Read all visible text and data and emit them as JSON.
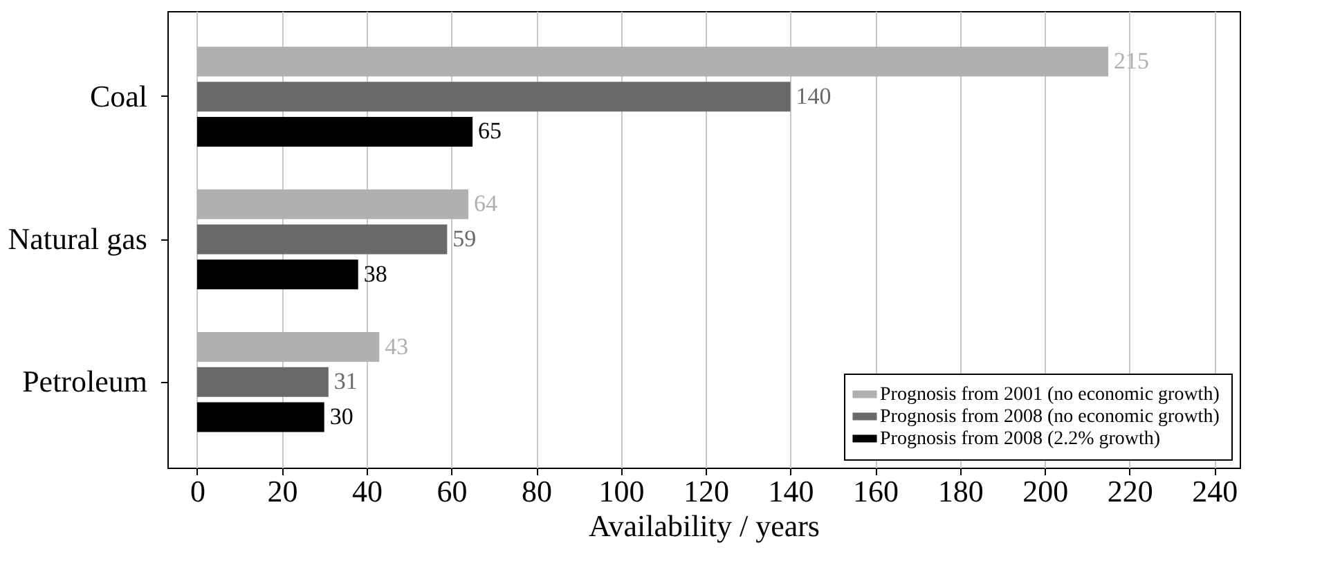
{
  "chart_data": {
    "type": "bar",
    "orientation": "horizontal",
    "xlabel": "Availability / years",
    "categories": [
      "Coal",
      "Natural gas",
      "Petroleum"
    ],
    "series": [
      {
        "name": "Prognosis from 2001 (no economic growth)",
        "color": "#b0b0b0",
        "values": [
          215,
          64,
          43
        ]
      },
      {
        "name": "Prognosis from 2008 (no economic growth)",
        "color": "#696969",
        "values": [
          140,
          59,
          31
        ]
      },
      {
        "name": "Prognosis from 2008 (2.2% growth)",
        "color": "#000000",
        "values": [
          65,
          38,
          30
        ]
      }
    ],
    "xlim": [
      -7,
      246
    ],
    "xticks": [
      0,
      20,
      40,
      60,
      80,
      100,
      120,
      140,
      160,
      180,
      200,
      220,
      240
    ],
    "grid": "x",
    "legend": "bottom right",
    "data_labels": true
  }
}
